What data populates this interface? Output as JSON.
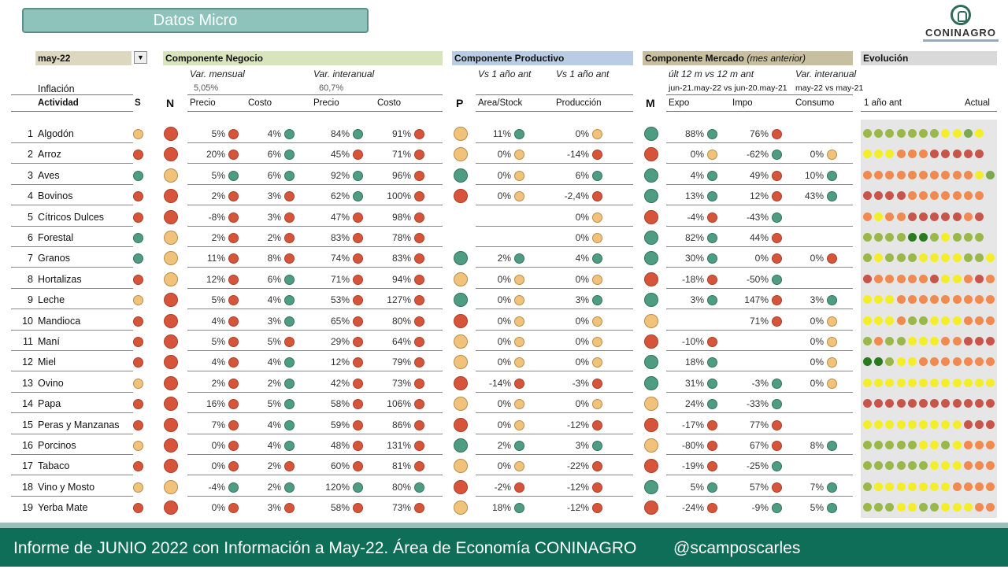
{
  "title": "Datos Micro",
  "logo": {
    "name": "CONINAGRO",
    "icon": "coninagro-logo-icon"
  },
  "period": {
    "value": "may-22"
  },
  "headers": {
    "negocio": "Componente Negocio",
    "productivo": "Componente Productivo",
    "mercado_main": "Componente Mercado",
    "mercado_note": "(mes anterior)",
    "evolucion": "Evolución"
  },
  "subheaders": {
    "var_mensual": "Var. mensual",
    "var_interanual": "Var. interanual",
    "vs1a": "Vs 1 año ant",
    "vs1b": "Vs 1 año ant",
    "ult12": "últ 12 m vs 12 m ant",
    "var_interanual2": "Var. interanual"
  },
  "inflation": {
    "label": "Inflación",
    "mensual": "5,05%",
    "interanual": "60,7%"
  },
  "mercado_periods": {
    "a": "jun-21.may-22 vs jun-20.may-21",
    "b": "may-22 vs may-21"
  },
  "columns": {
    "actividad": "Actividad",
    "s": "S",
    "n": "N",
    "precio": "Precio",
    "costo": "Costo",
    "precio2": "Precio",
    "costo2": "Costo",
    "p": "P",
    "area": "Area/Stock",
    "produccion": "Producción",
    "m": "M",
    "expo": "Expo",
    "impo": "Impo",
    "consumo": "Consumo",
    "evo_start": "1 año ant",
    "evo_end": "Actual"
  },
  "rows": [
    {
      "num": "1",
      "name": "Algodón",
      "s": "Y",
      "n": "R",
      "pm": "5%",
      "pmd": "R",
      "cm": "4%",
      "cmd": "G",
      "pi": "84%",
      "pid": "G",
      "ci": "91%",
      "cid": "R",
      "p": "Y",
      "area": "11%",
      "aread": "G",
      "prod": "0%",
      "prodd": "Y",
      "m": "G",
      "expo": "88%",
      "expod": "G",
      "impo": "76%",
      "impod": "R",
      "cons": "",
      "consd": "",
      "evo": "lllllllyygy"
    },
    {
      "num": "2",
      "name": "Arroz",
      "s": "R",
      "n": "R",
      "pm": "20%",
      "pmd": "R",
      "cm": "6%",
      "cmd": "G",
      "pi": "45%",
      "pid": "R",
      "ci": "71%",
      "cid": "R",
      "p": "Y",
      "area": "0%",
      "aread": "Y",
      "prod": "-14%",
      "prodd": "R",
      "m": "R",
      "expo": "0%",
      "expod": "Y",
      "impo": "-62%",
      "impod": "G",
      "cons": "0%",
      "consd": "Y",
      "evo": "yyyooorrrrr"
    },
    {
      "num": "3",
      "name": "Aves",
      "s": "G",
      "n": "Y",
      "pm": "5%",
      "pmd": "G",
      "cm": "6%",
      "cmd": "G",
      "pi": "92%",
      "pid": "G",
      "ci": "96%",
      "cid": "R",
      "p": "G",
      "area": "0%",
      "aread": "Y",
      "prod": "6%",
      "prodd": "G",
      "m": "G",
      "expo": "4%",
      "expod": "G",
      "impo": "49%",
      "impod": "R",
      "cons": "10%",
      "consd": "G",
      "evo": "ooooooooooyg"
    },
    {
      "num": "4",
      "name": "Bovinos",
      "s": "R",
      "n": "R",
      "pm": "2%",
      "pmd": "R",
      "cm": "3%",
      "cmd": "R",
      "pi": "62%",
      "pid": "G",
      "ci": "100%",
      "cid": "R",
      "p": "R",
      "area": "0%",
      "aread": "Y",
      "prod": "-2,4%",
      "prodd": "R",
      "m": "G",
      "expo": "13%",
      "expod": "G",
      "impo": "12%",
      "impod": "R",
      "cons": "43%",
      "consd": "G",
      "evo": "rrrrooooooo"
    },
    {
      "num": "5",
      "name": "Cítricos Dulces",
      "s": "R",
      "n": "R",
      "pm": "-8%",
      "pmd": "R",
      "cm": "3%",
      "cmd": "R",
      "pi": "47%",
      "pid": "R",
      "ci": "98%",
      "cid": "R",
      "p": "",
      "area": "",
      "aread": "",
      "prod": "0%",
      "prodd": "Y",
      "m": "R",
      "expo": "-4%",
      "expod": "R",
      "impo": "-43%",
      "impod": "G",
      "cons": "",
      "consd": "",
      "evo": "oyoorrrrror"
    },
    {
      "num": "6",
      "name": "Forestal",
      "s": "G",
      "n": "Y",
      "pm": "2%",
      "pmd": "R",
      "cm": "2%",
      "cmd": "R",
      "pi": "83%",
      "pid": "R",
      "ci": "78%",
      "cid": "R",
      "p": "",
      "area": "",
      "aread": "",
      "prod": "0%",
      "prodd": "Y",
      "m": "G",
      "expo": "82%",
      "expod": "G",
      "impo": "44%",
      "impod": "R",
      "cons": "",
      "consd": "",
      "evo": "llllddlylll"
    },
    {
      "num": "7",
      "name": "Granos",
      "s": "G",
      "n": "Y",
      "pm": "11%",
      "pmd": "R",
      "cm": "8%",
      "cmd": "R",
      "pi": "74%",
      "pid": "R",
      "ci": "83%",
      "cid": "R",
      "p": "G",
      "area": "2%",
      "aread": "G",
      "prod": "4%",
      "prodd": "G",
      "m": "G",
      "expo": "30%",
      "expod": "G",
      "impo": "0%",
      "impod": "R",
      "cons": "0%",
      "consd": "R",
      "evo": "lylllyyyylly"
    },
    {
      "num": "8",
      "name": "Hortalizas",
      "s": "R",
      "n": "Y",
      "pm": "12%",
      "pmd": "R",
      "cm": "6%",
      "cmd": "G",
      "pi": "71%",
      "pid": "R",
      "ci": "94%",
      "cid": "R",
      "p": "Y",
      "area": "0%",
      "aread": "Y",
      "prod": "0%",
      "prodd": "Y",
      "m": "R",
      "expo": "-18%",
      "expod": "R",
      "impo": "-50%",
      "impod": "G",
      "cons": "",
      "consd": "",
      "evo": "roooooryyoro"
    },
    {
      "num": "9",
      "name": "Leche",
      "s": "Y",
      "n": "R",
      "pm": "5%",
      "pmd": "R",
      "cm": "4%",
      "cmd": "G",
      "pi": "53%",
      "pid": "R",
      "ci": "127%",
      "cid": "R",
      "p": "G",
      "area": "0%",
      "aread": "Y",
      "prod": "3%",
      "prodd": "G",
      "m": "G",
      "expo": "3%",
      "expod": "G",
      "impo": "147%",
      "impod": "R",
      "cons": "3%",
      "consd": "G",
      "evo": "yyyooooooooo"
    },
    {
      "num": "10",
      "name": "Mandioca",
      "s": "R",
      "n": "R",
      "pm": "4%",
      "pmd": "R",
      "cm": "3%",
      "cmd": "G",
      "pi": "65%",
      "pid": "R",
      "ci": "80%",
      "cid": "R",
      "p": "R",
      "area": "0%",
      "aread": "Y",
      "prod": "0%",
      "prodd": "Y",
      "m": "Y",
      "expo": "",
      "expod": "",
      "impo": "71%",
      "impod": "R",
      "cons": "0%",
      "consd": "Y",
      "evo": "yyyollyyyooo"
    },
    {
      "num": "11",
      "name": "Maní",
      "s": "R",
      "n": "R",
      "pm": "5%",
      "pmd": "R",
      "cm": "5%",
      "cmd": "R",
      "pi": "29%",
      "pid": "R",
      "ci": "64%",
      "cid": "R",
      "p": "Y",
      "area": "0%",
      "aread": "Y",
      "prod": "0%",
      "prodd": "Y",
      "m": "R",
      "expo": "-10%",
      "expod": "R",
      "impo": "",
      "impod": "",
      "cons": "0%",
      "consd": "Y",
      "evo": "lollyyyoorrr"
    },
    {
      "num": "12",
      "name": "Miel",
      "s": "R",
      "n": "R",
      "pm": "4%",
      "pmd": "R",
      "cm": "4%",
      "cmd": "G",
      "pi": "12%",
      "pid": "R",
      "ci": "79%",
      "cid": "R",
      "p": "Y",
      "area": "0%",
      "aread": "Y",
      "prod": "0%",
      "prodd": "Y",
      "m": "G",
      "expo": "18%",
      "expod": "G",
      "impo": "",
      "impod": "",
      "cons": "0%",
      "consd": "Y",
      "evo": "ddlyyooooooo"
    },
    {
      "num": "13",
      "name": "Ovino",
      "s": "Y",
      "n": "R",
      "pm": "2%",
      "pmd": "R",
      "cm": "2%",
      "cmd": "G",
      "pi": "42%",
      "pid": "R",
      "ci": "73%",
      "cid": "R",
      "p": "R",
      "area": "-14%",
      "aread": "R",
      "prod": "-3%",
      "prodd": "R",
      "m": "G",
      "expo": "31%",
      "expod": "G",
      "impo": "-3%",
      "impod": "G",
      "cons": "0%",
      "consd": "Y",
      "evo": "yyyyyyyyyyyy"
    },
    {
      "num": "14",
      "name": "Papa",
      "s": "R",
      "n": "R",
      "pm": "16%",
      "pmd": "R",
      "cm": "5%",
      "cmd": "G",
      "pi": "58%",
      "pid": "R",
      "ci": "106%",
      "cid": "R",
      "p": "Y",
      "area": "0%",
      "aread": "Y",
      "prod": "0%",
      "prodd": "Y",
      "m": "Y",
      "expo": "24%",
      "expod": "G",
      "impo": "-33%",
      "impod": "G",
      "cons": "",
      "consd": "",
      "evo": "rrrrrrrrrrrr"
    },
    {
      "num": "15",
      "name": "Peras y Manzanas",
      "s": "R",
      "n": "R",
      "pm": "7%",
      "pmd": "R",
      "cm": "4%",
      "cmd": "G",
      "pi": "59%",
      "pid": "R",
      "ci": "86%",
      "cid": "R",
      "p": "R",
      "area": "0%",
      "aread": "Y",
      "prod": "-12%",
      "prodd": "R",
      "m": "R",
      "expo": "-17%",
      "expod": "R",
      "impo": "77%",
      "impod": "R",
      "cons": "",
      "consd": "",
      "evo": "yyyyyyyyyrrr"
    },
    {
      "num": "16",
      "name": "Porcinos",
      "s": "Y",
      "n": "R",
      "pm": "0%",
      "pmd": "R",
      "cm": "4%",
      "cmd": "G",
      "pi": "48%",
      "pid": "R",
      "ci": "131%",
      "cid": "R",
      "p": "G",
      "area": "2%",
      "aread": "G",
      "prod": "3%",
      "prodd": "G",
      "m": "Y",
      "expo": "-80%",
      "expod": "R",
      "impo": "67%",
      "impod": "R",
      "cons": "8%",
      "consd": "G",
      "evo": "lllllyylyooo"
    },
    {
      "num": "17",
      "name": "Tabaco",
      "s": "R",
      "n": "R",
      "pm": "0%",
      "pmd": "R",
      "cm": "2%",
      "cmd": "R",
      "pi": "60%",
      "pid": "R",
      "ci": "81%",
      "cid": "R",
      "p": "Y",
      "area": "0%",
      "aread": "Y",
      "prod": "-22%",
      "prodd": "R",
      "m": "R",
      "expo": "-19%",
      "expod": "R",
      "impo": "-25%",
      "impod": "G",
      "cons": "",
      "consd": "",
      "evo": "llllllyyyooo"
    },
    {
      "num": "18",
      "name": "Vino y Mosto",
      "s": "Y",
      "n": "Y",
      "pm": "-4%",
      "pmd": "G",
      "cm": "2%",
      "cmd": "G",
      "pi": "120%",
      "pid": "G",
      "ci": "80%",
      "cid": "G",
      "p": "R",
      "area": "-2%",
      "aread": "R",
      "prod": "-12%",
      "prodd": "R",
      "m": "G",
      "expo": "5%",
      "expod": "G",
      "impo": "57%",
      "impod": "R",
      "cons": "7%",
      "consd": "G",
      "evo": "lyyyyyyyoooo"
    },
    {
      "num": "19",
      "name": "Yerba Mate",
      "s": "R",
      "n": "R",
      "pm": "0%",
      "pmd": "R",
      "cm": "3%",
      "cmd": "R",
      "pi": "58%",
      "pid": "R",
      "ci": "73%",
      "cid": "R",
      "p": "Y",
      "area": "18%",
      "aread": "G",
      "prod": "-12%",
      "prodd": "R",
      "m": "R",
      "expo": "-24%",
      "expod": "R",
      "impo": "-9%",
      "impod": "G",
      "cons": "5%",
      "consd": "G",
      "evo": "lllyyllyyyoo"
    }
  ],
  "footer": {
    "text": "Informe de JUNIO 2022 con Información a May-22. Área de Economía CONINAGRO",
    "handle": "@scamposcarles"
  }
}
